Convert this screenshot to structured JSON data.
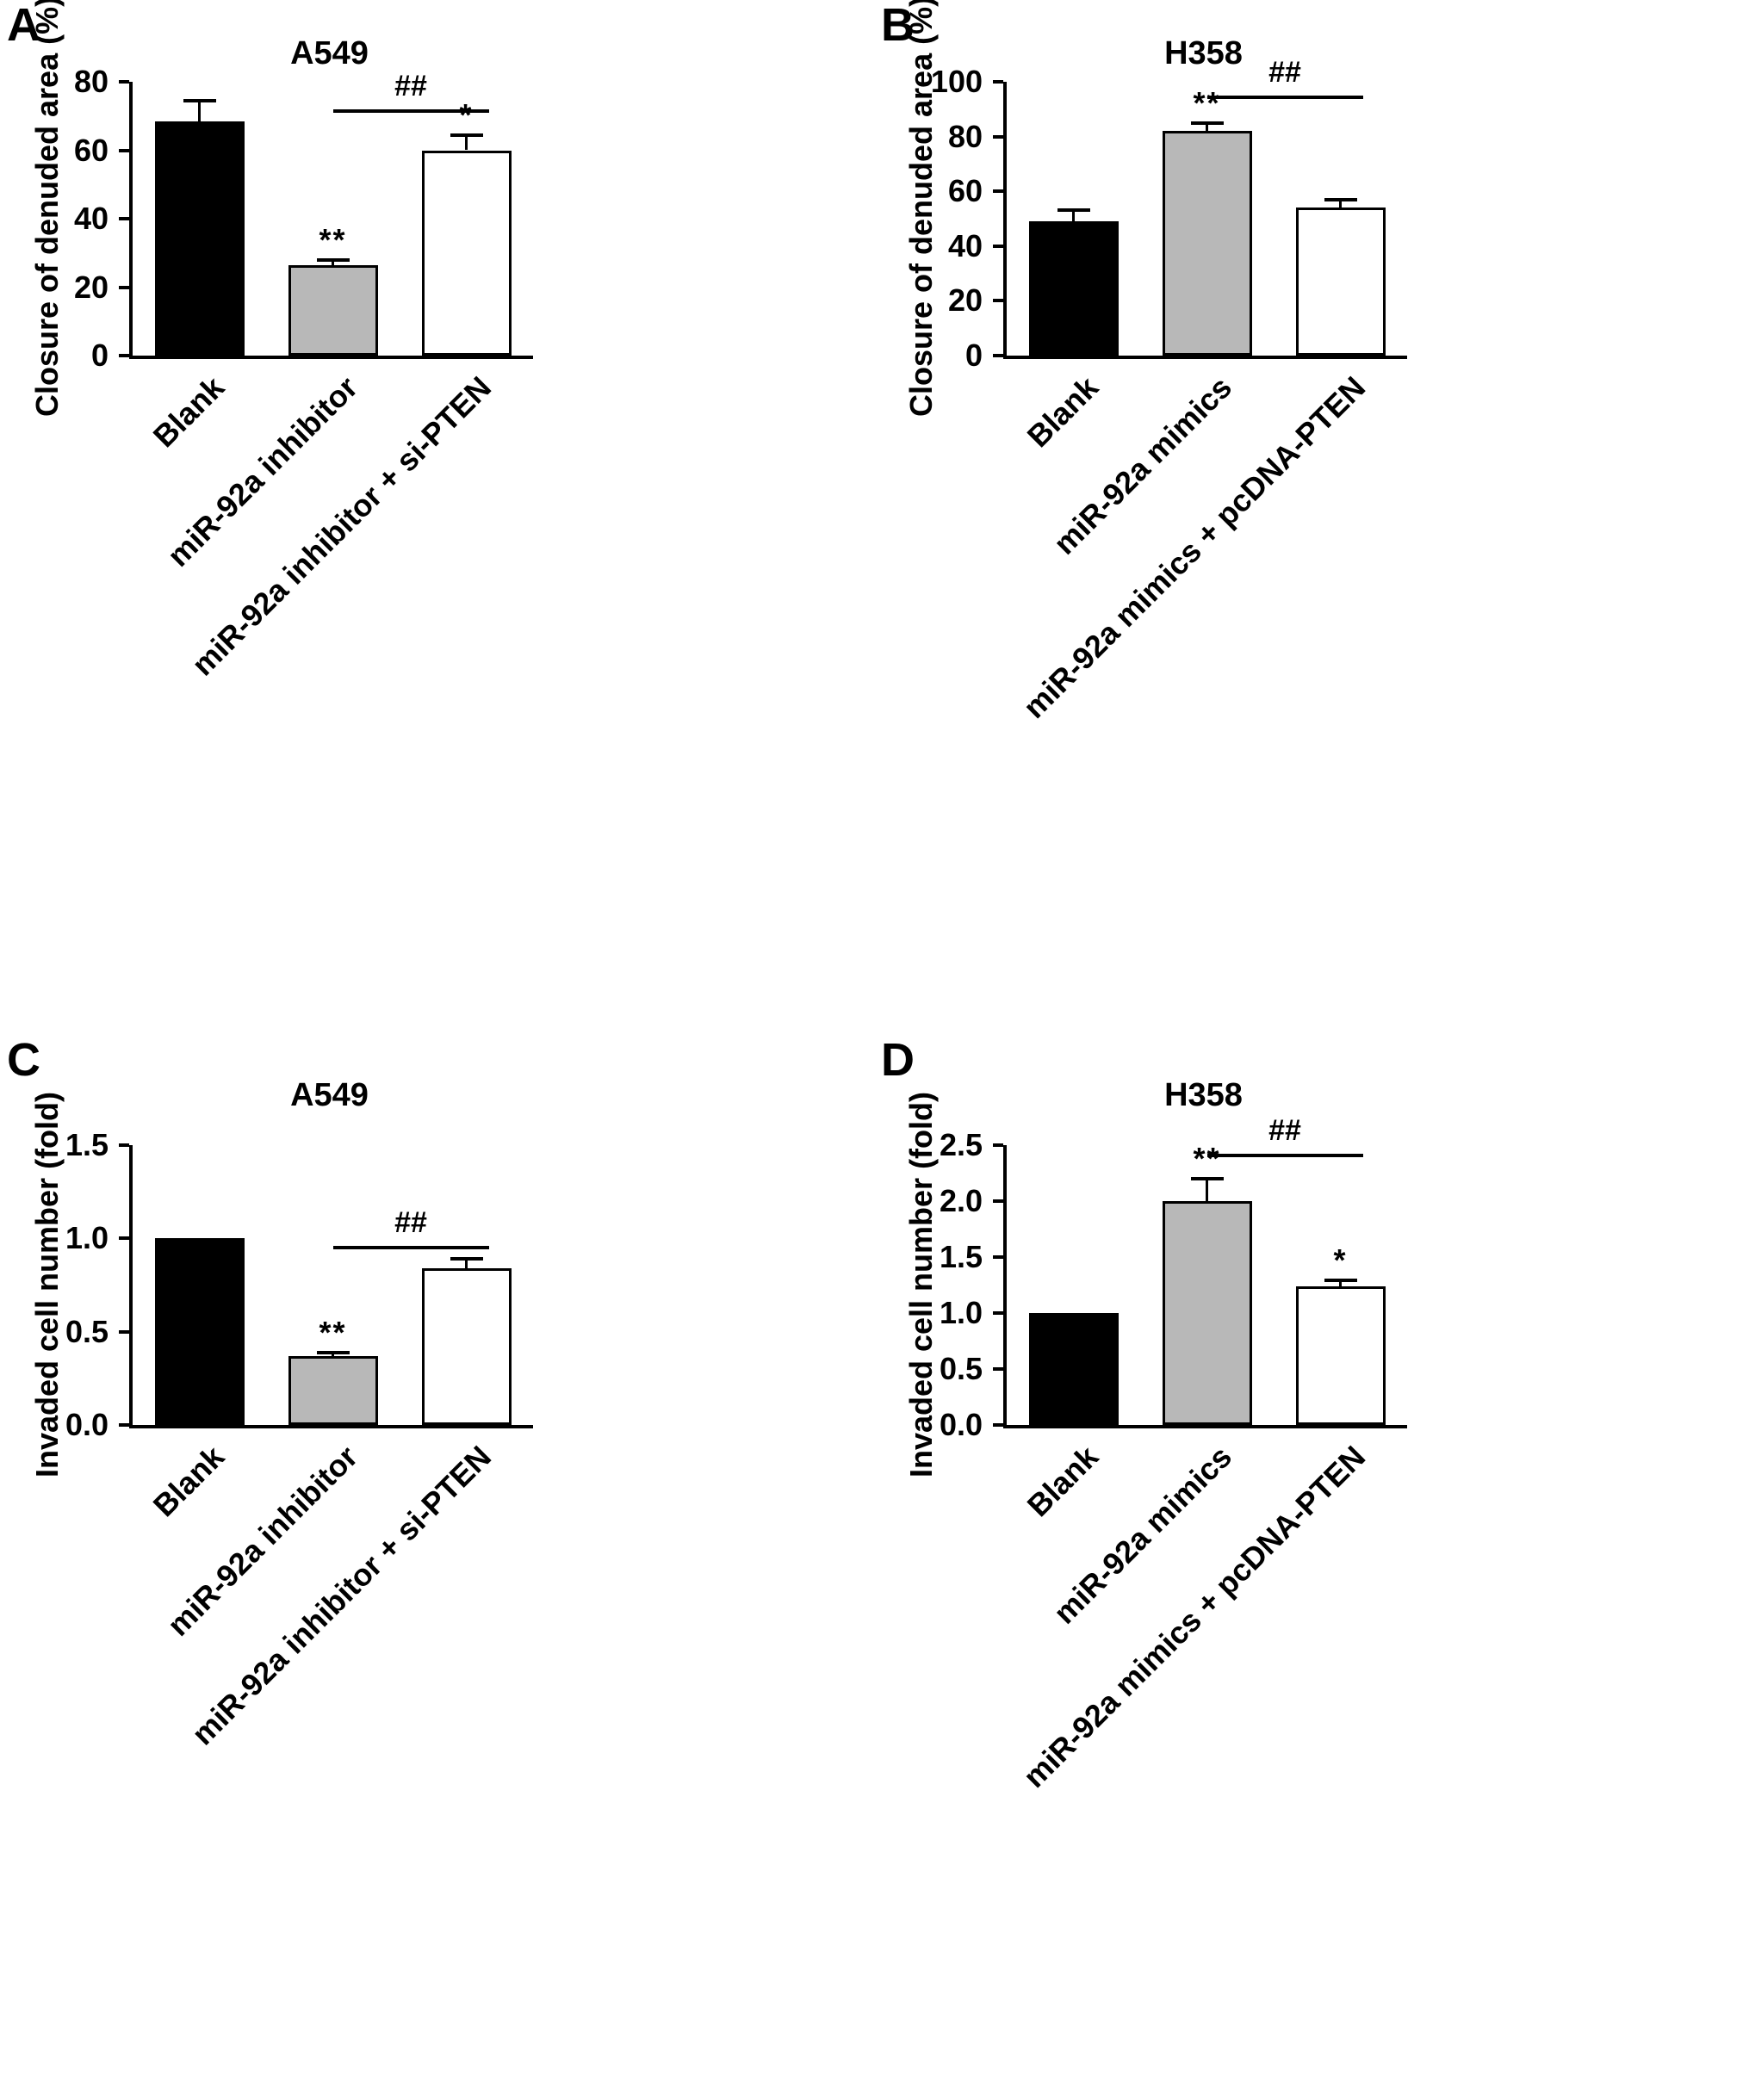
{
  "chart_data": [
    {
      "panel_letter": "A",
      "type": "bar",
      "title": "A549",
      "ylabel": "Closure of denuded area (%)",
      "xlabel": "",
      "ylim": [
        0,
        80
      ],
      "yticks": [
        0,
        20,
        40,
        60,
        80
      ],
      "ytick_labels": [
        "0",
        "20",
        "40",
        "60",
        "80"
      ],
      "categories": [
        "Blank",
        "miR-92a inhibitor",
        "miR-92a inhibitor + si-PTEN"
      ],
      "values": [
        68.5,
        26.5,
        60
      ],
      "errors": [
        6,
        1.5,
        4.5
      ],
      "bar_colors": [
        "#000000",
        "#b8b8b8",
        "#ffffff"
      ],
      "significance": [
        "",
        "**",
        "*"
      ],
      "comparison": {
        "from": 1,
        "to": 2,
        "y": 72,
        "label": "##"
      },
      "grid": false,
      "legend": false
    },
    {
      "panel_letter": "B",
      "type": "bar",
      "title": "H358",
      "ylabel": "Closure of denuded area (%)",
      "xlabel": "",
      "ylim": [
        0,
        100
      ],
      "yticks": [
        0,
        20,
        40,
        60,
        80,
        100
      ],
      "ytick_labels": [
        "0",
        "20",
        "40",
        "60",
        "80",
        "100"
      ],
      "categories": [
        "Blank",
        "miR-92a mimics",
        "miR-92a mimics + pcDNA-PTEN"
      ],
      "values": [
        49,
        82,
        54
      ],
      "errors": [
        4,
        3,
        3
      ],
      "bar_colors": [
        "#000000",
        "#b8b8b8",
        "#ffffff"
      ],
      "significance": [
        "",
        "**",
        ""
      ],
      "comparison": {
        "from": 1,
        "to": 2,
        "y": 95,
        "label": "##"
      },
      "grid": false,
      "legend": false
    },
    {
      "panel_letter": "C",
      "type": "bar",
      "title": "A549",
      "ylabel": "Invaded cell number (fold)",
      "xlabel": "",
      "ylim": [
        0,
        1.5
      ],
      "yticks": [
        0,
        0.5,
        1.0,
        1.5
      ],
      "ytick_labels": [
        "0.0",
        "0.5",
        "1.0",
        "1.5"
      ],
      "categories": [
        "Blank",
        "miR-92a inhibitor",
        "miR-92a inhibitor + si-PTEN"
      ],
      "values": [
        1.0,
        0.37,
        0.84
      ],
      "errors": [
        0,
        0.02,
        0.05
      ],
      "bar_colors": [
        "#000000",
        "#b8b8b8",
        "#ffffff"
      ],
      "significance": [
        "",
        "**",
        ""
      ],
      "comparison": {
        "from": 1,
        "to": 2,
        "y": 0.96,
        "label": "##"
      },
      "grid": false,
      "legend": false
    },
    {
      "panel_letter": "D",
      "type": "bar",
      "title": "H358",
      "ylabel": "Invaded cell number (fold)",
      "xlabel": "",
      "ylim": [
        0,
        2.5
      ],
      "yticks": [
        0,
        0.5,
        1.0,
        1.5,
        2.0,
        2.5
      ],
      "ytick_labels": [
        "0.0",
        "0.5",
        "1.0",
        "1.5",
        "2.0",
        "2.5"
      ],
      "categories": [
        "Blank",
        "miR-92a mimics",
        "miR-92a mimics + pcDNA-PTEN"
      ],
      "values": [
        1.0,
        2.0,
        1.24
      ],
      "errors": [
        0,
        0.2,
        0.05
      ],
      "bar_colors": [
        "#000000",
        "#b8b8b8",
        "#ffffff"
      ],
      "significance": [
        "",
        "**",
        "*"
      ],
      "comparison": {
        "from": 1,
        "to": 2,
        "y": 2.42,
        "label": "##"
      },
      "grid": false,
      "legend": false
    }
  ]
}
